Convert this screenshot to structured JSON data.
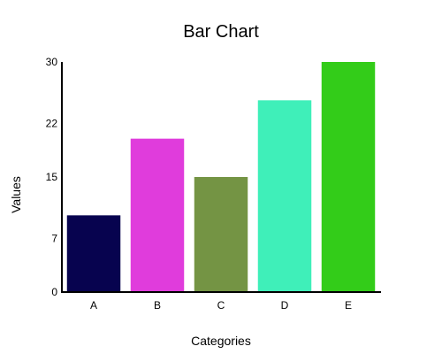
{
  "chart_data": {
    "type": "bar",
    "title": "Bar Chart",
    "xlabel": "Categories",
    "ylabel": "Values",
    "categories": [
      "A",
      "B",
      "C",
      "D",
      "E"
    ],
    "values": [
      10,
      20,
      15,
      25,
      30
    ],
    "colors": [
      "#07034f",
      "#e03cdc",
      "#749444",
      "#3fefb9",
      "#33cc19"
    ],
    "ylim": [
      0,
      30
    ],
    "yticks": [
      0,
      7,
      15,
      22,
      30
    ],
    "ytick_labels": [
      "0",
      "7",
      "15",
      "22",
      "30"
    ],
    "grid": false
  }
}
